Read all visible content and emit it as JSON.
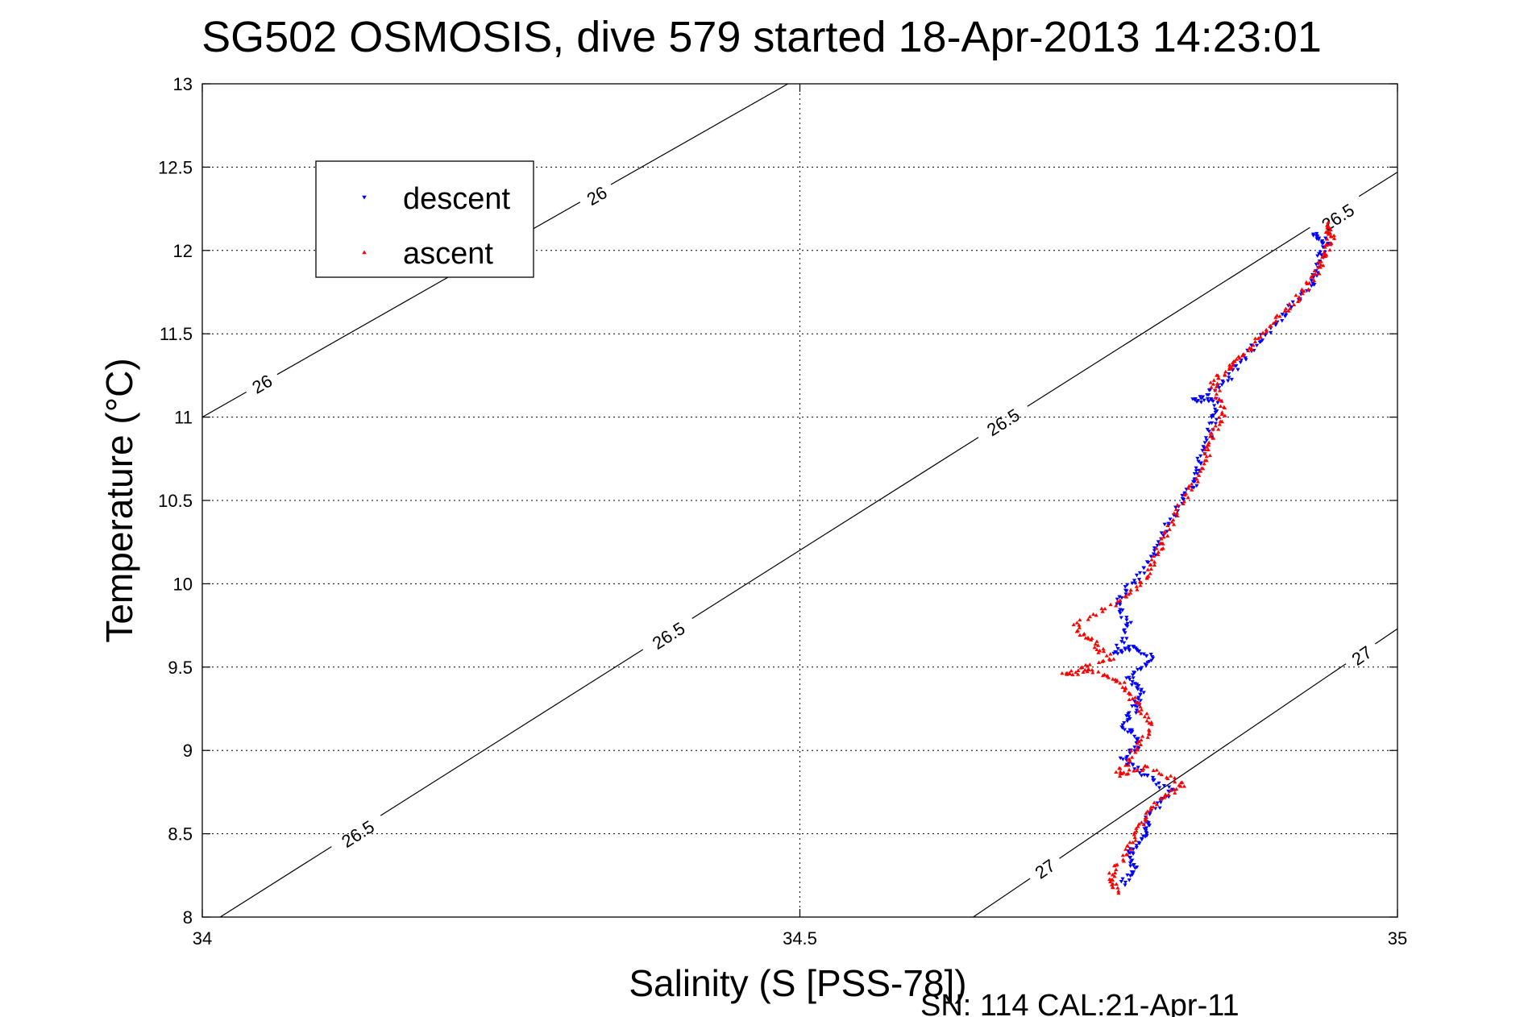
{
  "chart_data": {
    "type": "scatter",
    "title": "SG502 OSMOSIS, dive 579 started 18-Apr-2013 14:23:01",
    "xlabel": "Salinity (S [PSS-78])",
    "ylabel": "Temperature (°C)",
    "footer": "SN: 114  CAL:21-Apr-11",
    "xlim": [
      34,
      35
    ],
    "ylim": [
      8,
      13
    ],
    "xticks": [
      "34",
      "34.5",
      "35"
    ],
    "yticks": [
      "8",
      "8.5",
      "9",
      "9.5",
      "10",
      "10.5",
      "11",
      "11.5",
      "12",
      "12.5",
      "13"
    ],
    "grid": true,
    "legend": {
      "placement": "top-left",
      "entries": [
        "descent",
        "ascent"
      ]
    },
    "density_contours": [
      {
        "label": "26",
        "points": [
          [
            34.0,
            11.0
          ],
          [
            34.49,
            13.0
          ]
        ],
        "label_at": [
          [
            34.05,
            11.2
          ],
          [
            34.33,
            12.33
          ]
        ]
      },
      {
        "label": "26.5",
        "points": [
          [
            34.015,
            8.0
          ],
          [
            35.0,
            12.47
          ]
        ],
        "label_at": [
          [
            34.13,
            8.5
          ],
          [
            34.39,
            9.69
          ],
          [
            34.67,
            10.97
          ],
          [
            34.95,
            12.2
          ]
        ]
      },
      {
        "label": "27",
        "points": [
          [
            34.645,
            8.0
          ],
          [
            35.0,
            9.73
          ]
        ],
        "label_at": [
          [
            34.705,
            8.29
          ],
          [
            34.97,
            9.57
          ]
        ]
      }
    ],
    "series": [
      {
        "name": "descent",
        "color": "#0000ff",
        "marker": "triangle-down",
        "path": [
          [
            34.77,
            8.2
          ],
          [
            34.78,
            8.3
          ],
          [
            34.775,
            8.4
          ],
          [
            34.79,
            8.5
          ],
          [
            34.79,
            8.6
          ],
          [
            34.81,
            8.75
          ],
          [
            34.79,
            8.85
          ],
          [
            34.77,
            8.95
          ],
          [
            34.785,
            9.05
          ],
          [
            34.77,
            9.15
          ],
          [
            34.78,
            9.25
          ],
          [
            34.785,
            9.35
          ],
          [
            34.775,
            9.45
          ],
          [
            34.795,
            9.55
          ],
          [
            34.78,
            9.62
          ],
          [
            34.765,
            9.58
          ],
          [
            34.775,
            9.75
          ],
          [
            34.765,
            9.9
          ],
          [
            34.785,
            10.05
          ],
          [
            34.8,
            10.25
          ],
          [
            34.815,
            10.45
          ],
          [
            34.83,
            10.6
          ],
          [
            34.835,
            10.75
          ],
          [
            34.845,
            10.95
          ],
          [
            34.85,
            11.1
          ],
          [
            34.83,
            11.1
          ],
          [
            34.855,
            11.2
          ],
          [
            34.87,
            11.35
          ],
          [
            34.89,
            11.5
          ],
          [
            34.91,
            11.65
          ],
          [
            34.93,
            11.8
          ],
          [
            34.935,
            11.95
          ],
          [
            34.94,
            12.05
          ],
          [
            34.93,
            12.1
          ]
        ],
        "count": 420
      },
      {
        "name": "ascent",
        "color": "#ff0000",
        "marker": "triangle-up",
        "path": [
          [
            34.765,
            8.15
          ],
          [
            34.76,
            8.25
          ],
          [
            34.775,
            8.4
          ],
          [
            34.785,
            8.55
          ],
          [
            34.8,
            8.7
          ],
          [
            34.82,
            8.8
          ],
          [
            34.79,
            8.9
          ],
          [
            34.765,
            8.85
          ],
          [
            34.78,
            9.0
          ],
          [
            34.795,
            9.15
          ],
          [
            34.78,
            9.3
          ],
          [
            34.77,
            9.4
          ],
          [
            34.745,
            9.48
          ],
          [
            34.72,
            9.46
          ],
          [
            34.76,
            9.55
          ],
          [
            34.745,
            9.65
          ],
          [
            34.73,
            9.75
          ],
          [
            34.77,
            9.9
          ],
          [
            34.79,
            10.05
          ],
          [
            34.8,
            10.2
          ],
          [
            34.81,
            10.35
          ],
          [
            34.825,
            10.55
          ],
          [
            34.84,
            10.75
          ],
          [
            34.845,
            10.9
          ],
          [
            34.855,
            11.05
          ],
          [
            34.845,
            11.2
          ],
          [
            34.86,
            11.3
          ],
          [
            34.875,
            11.4
          ],
          [
            34.895,
            11.55
          ],
          [
            34.915,
            11.7
          ],
          [
            34.93,
            11.85
          ],
          [
            34.94,
            11.98
          ],
          [
            34.945,
            12.08
          ],
          [
            34.94,
            12.16
          ]
        ],
        "count": 420
      }
    ]
  }
}
